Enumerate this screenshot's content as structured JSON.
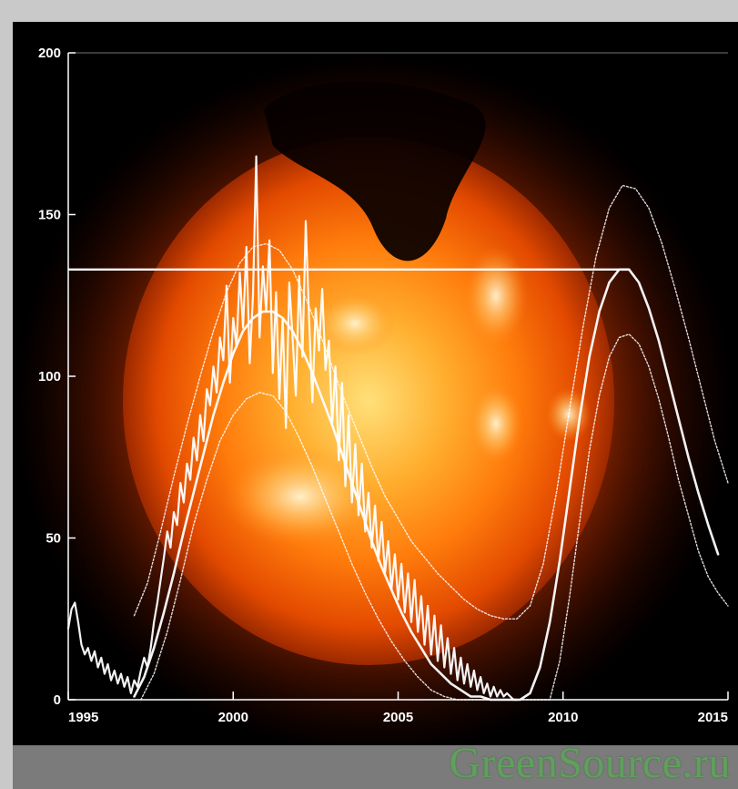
{
  "watermark": {
    "text": "GreenSource.ru"
  },
  "colors": {
    "background": "#000000",
    "sun_bright": "#fff2c8",
    "sun_mid": "#ff9a1c",
    "sun_outer": "#c83a00",
    "lines": "#ffffff",
    "band": "#7b7b7b",
    "watermark": "#5ea35b"
  },
  "chart_data": {
    "type": "line",
    "title": "",
    "xlabel": "",
    "ylabel": "",
    "xlim": [
      1995,
      2015
    ],
    "ylim": [
      0,
      200
    ],
    "grid": false,
    "background_image": "solar-corona",
    "x_ticks": [
      1995,
      2000,
      2005,
      2010,
      2015
    ],
    "y_ticks": [
      0,
      50,
      100,
      150,
      200
    ],
    "horizontal_reference": 133,
    "series": [
      {
        "style": "observed-jagged",
        "points": [
          [
            1995.0,
            22
          ],
          [
            1995.1,
            28
          ],
          [
            1995.2,
            30
          ],
          [
            1995.3,
            24
          ],
          [
            1995.4,
            17
          ],
          [
            1995.5,
            14
          ],
          [
            1995.6,
            16
          ],
          [
            1995.7,
            12
          ],
          [
            1995.8,
            15
          ],
          [
            1995.9,
            10
          ],
          [
            1996.0,
            13
          ],
          [
            1996.1,
            8
          ],
          [
            1996.2,
            11
          ],
          [
            1996.3,
            6
          ],
          [
            1996.4,
            9
          ],
          [
            1996.5,
            5
          ],
          [
            1996.6,
            8
          ],
          [
            1996.7,
            4
          ],
          [
            1996.8,
            7
          ],
          [
            1996.9,
            2
          ],
          [
            1997.0,
            6
          ],
          [
            1997.1,
            4
          ],
          [
            1997.2,
            9
          ],
          [
            1997.3,
            13
          ],
          [
            1997.4,
            10
          ],
          [
            1997.5,
            16
          ],
          [
            1997.6,
            24
          ],
          [
            1997.7,
            30
          ],
          [
            1997.8,
            37
          ],
          [
            1997.9,
            44
          ],
          [
            1998.0,
            52
          ],
          [
            1998.1,
            47
          ],
          [
            1998.2,
            58
          ],
          [
            1998.3,
            54
          ],
          [
            1998.4,
            67
          ],
          [
            1998.5,
            61
          ],
          [
            1998.6,
            73
          ],
          [
            1998.7,
            68
          ],
          [
            1998.8,
            81
          ],
          [
            1998.9,
            74
          ],
          [
            1999.0,
            88
          ],
          [
            1999.1,
            80
          ],
          [
            1999.2,
            96
          ],
          [
            1999.3,
            91
          ],
          [
            1999.4,
            103
          ],
          [
            1999.5,
            95
          ],
          [
            1999.6,
            112
          ],
          [
            1999.7,
            105
          ],
          [
            1999.8,
            128
          ],
          [
            1999.9,
            98
          ],
          [
            2000.0,
            118
          ],
          [
            2000.1,
            109
          ],
          [
            2000.2,
            132
          ],
          [
            2000.3,
            115
          ],
          [
            2000.4,
            140
          ],
          [
            2000.5,
            104
          ],
          [
            2000.6,
            125
          ],
          [
            2000.7,
            168
          ],
          [
            2000.8,
            112
          ],
          [
            2000.9,
            134
          ],
          [
            2001.0,
            120
          ],
          [
            2001.1,
            142
          ],
          [
            2001.2,
            101
          ],
          [
            2001.3,
            126
          ],
          [
            2001.4,
            93
          ],
          [
            2001.5,
            118
          ],
          [
            2001.6,
            84
          ],
          [
            2001.7,
            129
          ],
          [
            2001.8,
            112
          ],
          [
            2001.9,
            94
          ],
          [
            2002.0,
            131
          ],
          [
            2002.1,
            106
          ],
          [
            2002.2,
            148
          ],
          [
            2002.3,
            118
          ],
          [
            2002.4,
            92
          ],
          [
            2002.5,
            121
          ],
          [
            2002.6,
            108
          ],
          [
            2002.7,
            127
          ],
          [
            2002.8,
            102
          ],
          [
            2002.9,
            111
          ],
          [
            2003.0,
            85
          ],
          [
            2003.1,
            103
          ],
          [
            2003.2,
            74
          ],
          [
            2003.3,
            98
          ],
          [
            2003.4,
            66
          ],
          [
            2003.5,
            88
          ],
          [
            2003.6,
            61
          ],
          [
            2003.7,
            79
          ],
          [
            2003.8,
            57
          ],
          [
            2003.9,
            73
          ],
          [
            2004.0,
            52
          ],
          [
            2004.1,
            64
          ],
          [
            2004.2,
            47
          ],
          [
            2004.3,
            60
          ],
          [
            2004.4,
            43
          ],
          [
            2004.5,
            55
          ],
          [
            2004.6,
            39
          ],
          [
            2004.7,
            49
          ],
          [
            2004.8,
            34
          ],
          [
            2004.9,
            45
          ],
          [
            2005.0,
            31
          ],
          [
            2005.1,
            42
          ],
          [
            2005.2,
            27
          ],
          [
            2005.3,
            39
          ],
          [
            2005.4,
            24
          ],
          [
            2005.5,
            37
          ],
          [
            2005.6,
            21
          ],
          [
            2005.7,
            32
          ],
          [
            2005.8,
            17
          ],
          [
            2005.9,
            29
          ],
          [
            2006.0,
            14
          ],
          [
            2006.1,
            26
          ],
          [
            2006.2,
            12
          ],
          [
            2006.3,
            23
          ],
          [
            2006.4,
            10
          ],
          [
            2006.5,
            19
          ],
          [
            2006.6,
            8
          ],
          [
            2006.7,
            16
          ],
          [
            2006.8,
            6
          ],
          [
            2006.9,
            13
          ],
          [
            2007.0,
            5
          ],
          [
            2007.1,
            11
          ],
          [
            2007.2,
            4
          ],
          [
            2007.3,
            9
          ],
          [
            2007.4,
            3
          ],
          [
            2007.5,
            7
          ],
          [
            2007.6,
            2
          ],
          [
            2007.7,
            5
          ],
          [
            2007.8,
            1
          ],
          [
            2007.9,
            4
          ],
          [
            2008.0,
            1
          ],
          [
            2008.1,
            3
          ],
          [
            2008.2,
            1
          ],
          [
            2008.3,
            2
          ],
          [
            2008.4,
            1
          ],
          [
            2008.5,
            0
          ],
          [
            2008.6,
            0
          ]
        ]
      },
      {
        "style": "fit-main",
        "points": [
          [
            1997.0,
            1
          ],
          [
            1997.3,
            7
          ],
          [
            1997.6,
            16
          ],
          [
            1997.9,
            27
          ],
          [
            1998.2,
            39
          ],
          [
            1998.5,
            52
          ],
          [
            1998.8,
            64
          ],
          [
            1999.1,
            76
          ],
          [
            1999.4,
            88
          ],
          [
            1999.7,
            98
          ],
          [
            2000.0,
            107
          ],
          [
            2000.3,
            114
          ],
          [
            2000.6,
            118
          ],
          [
            2000.9,
            120
          ],
          [
            2001.2,
            120
          ],
          [
            2001.5,
            118
          ],
          [
            2001.8,
            114
          ],
          [
            2002.1,
            108
          ],
          [
            2002.4,
            101
          ],
          [
            2002.7,
            93
          ],
          [
            2003.0,
            85
          ],
          [
            2003.3,
            76
          ],
          [
            2003.6,
            67
          ],
          [
            2003.9,
            58
          ],
          [
            2004.2,
            49
          ],
          [
            2004.5,
            41
          ],
          [
            2004.8,
            34
          ],
          [
            2005.1,
            27
          ],
          [
            2005.4,
            21
          ],
          [
            2005.7,
            16
          ],
          [
            2006.0,
            11
          ],
          [
            2006.3,
            8
          ],
          [
            2006.6,
            5
          ],
          [
            2006.9,
            3
          ],
          [
            2007.2,
            1
          ],
          [
            2007.5,
            1
          ],
          [
            2007.8,
            0
          ],
          [
            2008.1,
            0
          ],
          [
            2008.4,
            0
          ],
          [
            2008.7,
            0
          ],
          [
            2009.0,
            2
          ],
          [
            2009.3,
            10
          ],
          [
            2009.6,
            24
          ],
          [
            2009.9,
            43
          ],
          [
            2010.2,
            65
          ],
          [
            2010.5,
            87
          ],
          [
            2010.8,
            106
          ],
          [
            2011.1,
            120
          ],
          [
            2011.4,
            129
          ],
          [
            2011.7,
            133
          ],
          [
            2012.0,
            133
          ],
          [
            2012.3,
            129
          ],
          [
            2012.6,
            121
          ],
          [
            2012.9,
            111
          ],
          [
            2013.2,
            99
          ],
          [
            2013.5,
            87
          ],
          [
            2013.8,
            75
          ],
          [
            2014.1,
            64
          ],
          [
            2014.4,
            54
          ],
          [
            2014.7,
            45
          ]
        ]
      },
      {
        "style": "fit-upper",
        "points": [
          [
            1997.0,
            26
          ],
          [
            1997.4,
            36
          ],
          [
            1997.8,
            52
          ],
          [
            1998.2,
            69
          ],
          [
            1998.6,
            85
          ],
          [
            1999.0,
            100
          ],
          [
            1999.4,
            114
          ],
          [
            1999.8,
            126
          ],
          [
            2000.2,
            135
          ],
          [
            2000.6,
            140
          ],
          [
            2001.0,
            141
          ],
          [
            2001.4,
            139
          ],
          [
            2001.8,
            133
          ],
          [
            2002.2,
            124
          ],
          [
            2002.6,
            114
          ],
          [
            2003.0,
            103
          ],
          [
            2003.4,
            92
          ],
          [
            2003.8,
            82
          ],
          [
            2004.2,
            72
          ],
          [
            2004.6,
            63
          ],
          [
            2005.0,
            56
          ],
          [
            2005.4,
            49
          ],
          [
            2005.8,
            44
          ],
          [
            2006.2,
            39
          ],
          [
            2006.6,
            35
          ],
          [
            2007.0,
            31
          ],
          [
            2007.4,
            28
          ],
          [
            2007.8,
            26
          ],
          [
            2008.2,
            25
          ],
          [
            2008.6,
            25
          ],
          [
            2009.0,
            29
          ],
          [
            2009.4,
            42
          ],
          [
            2009.8,
            64
          ],
          [
            2010.2,
            90
          ],
          [
            2010.6,
            115
          ],
          [
            2011.0,
            137
          ],
          [
            2011.4,
            152
          ],
          [
            2011.8,
            159
          ],
          [
            2012.2,
            158
          ],
          [
            2012.6,
            152
          ],
          [
            2013.0,
            141
          ],
          [
            2013.4,
            127
          ],
          [
            2013.8,
            112
          ],
          [
            2014.2,
            96
          ],
          [
            2014.6,
            80
          ],
          [
            2015.0,
            67
          ]
        ]
      },
      {
        "style": "fit-lower",
        "points": [
          [
            1997.2,
            0
          ],
          [
            1997.6,
            8
          ],
          [
            1998.0,
            21
          ],
          [
            1998.4,
            37
          ],
          [
            1998.8,
            54
          ],
          [
            1999.2,
            68
          ],
          [
            1999.6,
            80
          ],
          [
            2000.0,
            88
          ],
          [
            2000.4,
            93
          ],
          [
            2000.8,
            95
          ],
          [
            2001.2,
            94
          ],
          [
            2001.6,
            89
          ],
          [
            2002.0,
            81
          ],
          [
            2002.4,
            72
          ],
          [
            2002.8,
            62
          ],
          [
            2003.2,
            52
          ],
          [
            2003.6,
            42
          ],
          [
            2004.0,
            33
          ],
          [
            2004.4,
            25
          ],
          [
            2004.8,
            18
          ],
          [
            2005.2,
            12
          ],
          [
            2005.6,
            7
          ],
          [
            2006.0,
            3
          ],
          [
            2006.4,
            1
          ],
          [
            2006.8,
            0
          ],
          [
            2009.6,
            0
          ],
          [
            2009.9,
            12
          ],
          [
            2010.2,
            32
          ],
          [
            2010.5,
            55
          ],
          [
            2010.8,
            77
          ],
          [
            2011.1,
            94
          ],
          [
            2011.4,
            106
          ],
          [
            2011.7,
            112
          ],
          [
            2012.0,
            113
          ],
          [
            2012.3,
            110
          ],
          [
            2012.6,
            103
          ],
          [
            2012.9,
            93
          ],
          [
            2013.2,
            81
          ],
          [
            2013.5,
            68
          ],
          [
            2013.8,
            57
          ],
          [
            2014.1,
            46
          ],
          [
            2014.4,
            38
          ],
          [
            2014.7,
            33
          ],
          [
            2015.0,
            29
          ]
        ]
      }
    ]
  }
}
